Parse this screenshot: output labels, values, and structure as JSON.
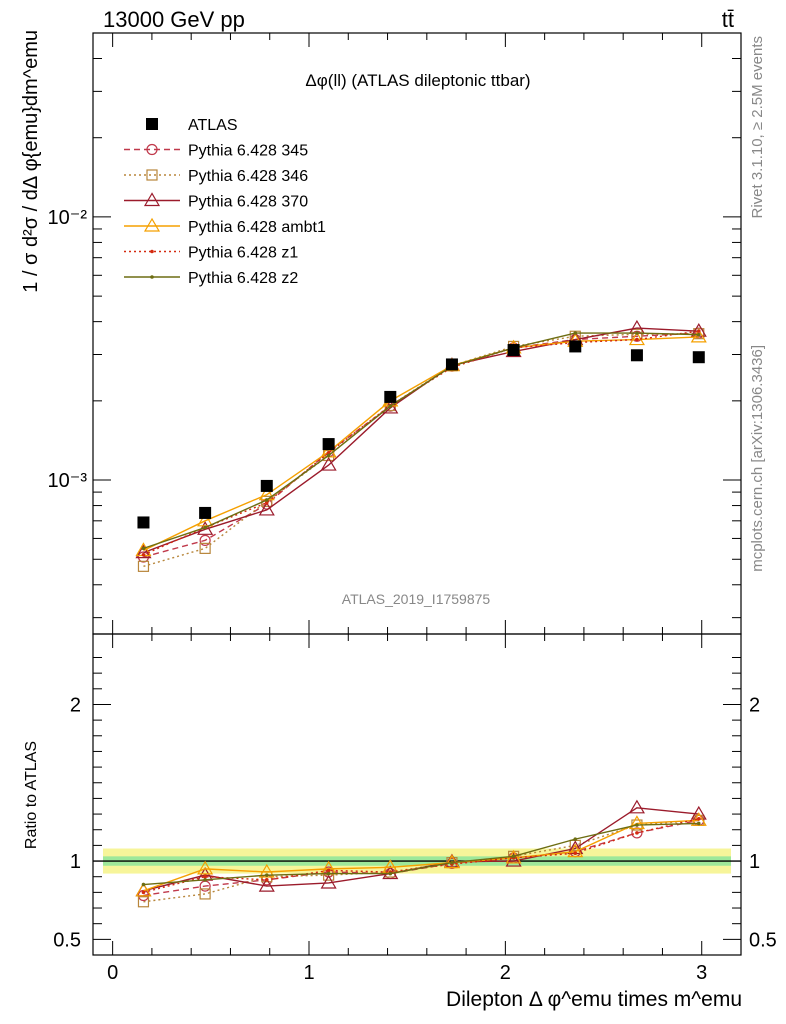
{
  "header": {
    "left": "13000 GeV pp",
    "right": "tt̄"
  },
  "side": {
    "rivet": "Rivet 3.1.10, ≥ 2.5M events",
    "mcplots": "mcplots.cern.ch [arXiv:1306.3436]"
  },
  "chart_data": [
    {
      "type": "line",
      "title": "Δφ(ll) (ATLAS dileptonic ttbar)",
      "watermark": "ATLAS_2019_I1759875",
      "ylabel": "1 / σ  d²σ / dΔ φ{emu}dm^emu",
      "yscale": "log",
      "ylim": [
        0.00026,
        0.05
      ],
      "xlim": [
        -0.1,
        3.2
      ],
      "y_ticks": [
        {
          "value": 0.001,
          "label": "10⁻³"
        },
        {
          "value": 0.01,
          "label": "10⁻²"
        }
      ],
      "legend_position": "top-left",
      "x": [
        0.157,
        0.471,
        0.785,
        1.1,
        1.414,
        1.728,
        2.042,
        2.356,
        2.67,
        2.985
      ],
      "series": [
        {
          "name": "ATLAS",
          "color": "#000000",
          "marker": "square-filled",
          "line": "none",
          "values": [
            0.00069,
            0.00075,
            0.00095,
            0.00137,
            0.00207,
            0.00275,
            0.00312,
            0.00322,
            0.00298,
            0.00293
          ]
        },
        {
          "name": "Pythia 6.428 345",
          "color": "#c0394b",
          "marker": "circle-open",
          "line": "dashed",
          "values": [
            0.00051,
            0.00059,
            0.00081,
            0.00128,
            0.00191,
            0.00271,
            0.00318,
            0.00342,
            0.00352,
            0.00362
          ]
        },
        {
          "name": "Pythia 6.428 346",
          "color": "#b8863b",
          "marker": "square-open",
          "line": "dotted",
          "values": [
            0.00047,
            0.00055,
            0.00083,
            0.00124,
            0.00192,
            0.00272,
            0.00322,
            0.00352,
            0.00358,
            0.0036
          ]
        },
        {
          "name": "Pythia 6.428 370",
          "color": "#9b1b2b",
          "marker": "triangle-open",
          "line": "solid",
          "values": [
            0.00053,
            0.00065,
            0.00077,
            0.00114,
            0.00188,
            0.00273,
            0.00308,
            0.00342,
            0.00378,
            0.00368
          ]
        },
        {
          "name": "Pythia 6.428 ambt1",
          "color": "#f5a000",
          "marker": "triangle-open",
          "line": "solid",
          "values": [
            0.00054,
            0.0007,
            0.00088,
            0.00128,
            0.002,
            0.00272,
            0.00318,
            0.00337,
            0.00342,
            0.0035
          ]
        },
        {
          "name": "Pythia 6.428 z1",
          "color": "#d42a10",
          "marker": "dot",
          "line": "dotted",
          "values": [
            0.00052,
            0.00066,
            0.00082,
            0.00127,
            0.00192,
            0.00268,
            0.00318,
            0.00333,
            0.00342,
            0.00368
          ]
        },
        {
          "name": "Pythia 6.428 z2",
          "color": "#6d6d12",
          "marker": "dot",
          "line": "solid",
          "values": [
            0.00055,
            0.00066,
            0.00084,
            0.00124,
            0.00191,
            0.00271,
            0.00318,
            0.00362,
            0.00362,
            0.00357
          ]
        }
      ]
    },
    {
      "type": "line",
      "ylabel": "Ratio to ATLAS",
      "xlabel": "Dilepton Δ φ^emu times m^emu",
      "ylim": [
        0.4,
        2.45
      ],
      "xlim": [
        -0.1,
        3.2
      ],
      "y_ticks": [
        {
          "value": 0.5,
          "label": "0.5"
        },
        {
          "value": 1,
          "label": "1"
        },
        {
          "value": 2,
          "label": "2"
        }
      ],
      "x_ticks": [
        {
          "value": 0,
          "label": "0"
        },
        {
          "value": 1,
          "label": "1"
        },
        {
          "value": 2,
          "label": "2"
        },
        {
          "value": 3,
          "label": "3"
        }
      ],
      "band": {
        "inner": 0.03,
        "outer": 0.08
      },
      "series_ratio": [
        [
          0.78,
          0.84,
          0.88,
          0.93,
          0.92,
          0.985,
          1.02,
          1.06,
          1.18,
          1.26
        ],
        [
          0.74,
          0.79,
          0.9,
          0.91,
          0.93,
          0.99,
          1.03,
          1.1,
          1.23,
          1.26
        ],
        [
          0.81,
          0.91,
          0.84,
          0.86,
          0.92,
          0.995,
          1.0,
          1.08,
          1.34,
          1.3
        ],
        [
          0.81,
          0.95,
          0.93,
          0.95,
          0.96,
          0.99,
          1.02,
          1.06,
          1.24,
          1.26
        ],
        [
          0.8,
          0.9,
          0.88,
          0.94,
          0.93,
          0.98,
          1.02,
          1.05,
          1.18,
          1.27
        ],
        [
          0.85,
          0.88,
          0.91,
          0.92,
          0.92,
          0.99,
          1.03,
          1.14,
          1.23,
          1.24
        ]
      ]
    }
  ]
}
